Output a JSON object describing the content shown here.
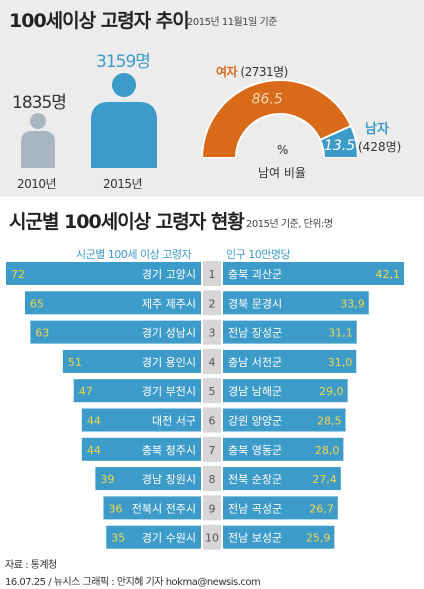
{
  "section1": {
    "title": "100세이상 고령자 추이",
    "subtitle": "2015년 11월1일 기준",
    "count_2010": "1835명",
    "count_2015": "3159명",
    "year_2010": "2010년",
    "year_2015": "2015년",
    "female_label": "여자",
    "female_count": "(2731명)",
    "male_label": "남자",
    "male_count": "(428명)",
    "female_pct_text": "86.5",
    "male_pct_text": "13.5",
    "pct_unit": "%",
    "ratio_caption": "남여 비율"
  },
  "section2": {
    "title": "시군별 100세이상 고령자 현황",
    "subtitle": "2015년 기준, 단위:명",
    "left_header": "시군별 100세 이상 고령자",
    "right_header": "인구 10만명당"
  },
  "footer": {
    "source": "자료 : 통계청",
    "credit": "16.07.25 / 뉴시스 그래픽 : 안지혜 기자 hokma@newsis.com"
  },
  "colors": {
    "blue": "#3d9bc9",
    "orange": "#d86a1a",
    "gray_person": "#a9b6c2",
    "rank_box": "#d6d6d6",
    "value_text": "#f3d54a"
  },
  "chart_data": [
    {
      "type": "bar",
      "categories": [
        "2010년",
        "2015년"
      ],
      "values": [
        1835,
        3159
      ],
      "ylabel": "명"
    },
    {
      "type": "pie",
      "variant": "half-donut",
      "categories": [
        "여자",
        "남자"
      ],
      "values": [
        86.5,
        13.5
      ],
      "counts": [
        2731,
        428
      ],
      "unit": "%"
    },
    {
      "type": "bar",
      "orientation": "horizontal",
      "title": "시군별 100세 이상 고령자",
      "ranks": [
        "1",
        "2",
        "3",
        "4",
        "5",
        "6",
        "7",
        "8",
        "9",
        "10"
      ],
      "categories": [
        "경기 고양시",
        "제주 제주시",
        "경기 성남시",
        "경기 용인시",
        "경기 부천시",
        "대전 서구",
        "충북 청주시",
        "경남 창원시",
        "전북시 전주시",
        "경기 수원시"
      ],
      "values": [
        72,
        65,
        63,
        51,
        47,
        44,
        44,
        39,
        36,
        35
      ],
      "value_labels": [
        "72",
        "65",
        "63",
        "51",
        "47",
        "44",
        "44",
        "39",
        "36",
        "35"
      ]
    },
    {
      "type": "bar",
      "orientation": "horizontal",
      "title": "인구 10만명당",
      "ranks": [
        "1",
        "2",
        "3",
        "4",
        "5",
        "6",
        "7",
        "8",
        "9",
        "10"
      ],
      "categories": [
        "충북 괴산군",
        "경북 문경시",
        "전남 장성군",
        "충남 서천군",
        "경남 남해군",
        "강원 양양군",
        "충북 영동군",
        "전북 순창군",
        "전남 곡성군",
        "전남 보성군"
      ],
      "values": [
        42.1,
        33.9,
        31.1,
        31.0,
        29.0,
        28.5,
        28.0,
        27.4,
        26.7,
        25.9
      ],
      "value_labels": [
        "42,1",
        "33,9",
        "31,1",
        "31,0",
        "29,0",
        "28,5",
        "28,0",
        "27,4",
        "26,7",
        "25,9"
      ]
    }
  ]
}
